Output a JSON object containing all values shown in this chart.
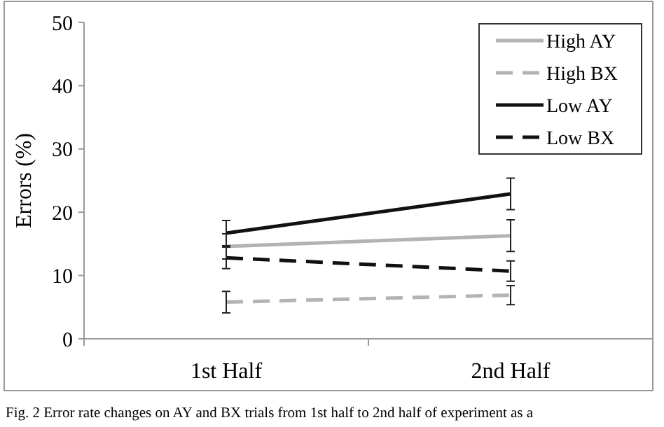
{
  "chart_data": {
    "type": "line",
    "ylabel": "Errors (%)",
    "categories": [
      "1st Half",
      "2nd Half"
    ],
    "series": [
      {
        "name": "High AY",
        "color": "#b3b3b3",
        "values": [
          14.6,
          16.3
        ],
        "errors": [
          2,
          2.5
        ],
        "line_style": "solid"
      },
      {
        "name": "High BX",
        "color": "#b3b3b3",
        "values": [
          5.8,
          6.9
        ],
        "errors": [
          1.7,
          1.5
        ],
        "line_style": "dashed"
      },
      {
        "name": "Low AY",
        "color": "#111111",
        "values": [
          16.7,
          22.9
        ],
        "errors": [
          2,
          2.5
        ],
        "line_style": "solid"
      },
      {
        "name": "Low BX",
        "color": "#111111",
        "values": [
          12.8,
          10.7
        ],
        "errors": [
          1.7,
          1.6
        ],
        "line_style": "dashed"
      }
    ],
    "ylim": [
      0,
      50
    ],
    "yticks": [
      0,
      10,
      20,
      30,
      40,
      50
    ],
    "grid": false,
    "legend": "top right",
    "marker": "none",
    "annotations": [
      "Fig. 2  Error rate changes on AY and BX trials from 1st half to 2nd half of experiment as a"
    ]
  }
}
